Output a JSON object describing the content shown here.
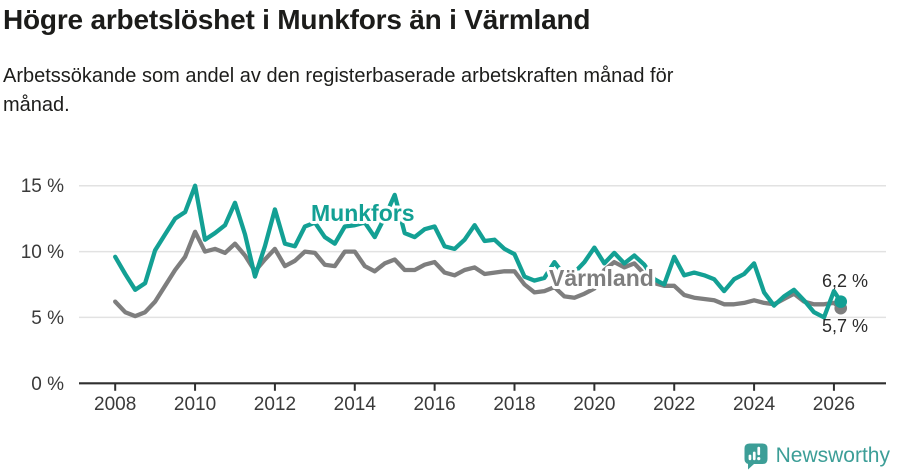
{
  "header": {
    "title": "Högre arbetslöshet i Munkfors än i Värmland",
    "subtitle_line1": "Arbetssökande som andel av den registerbaserade arbetskraften månad för",
    "subtitle_line2": "månad."
  },
  "footer": {
    "brand": "Newsworthy"
  },
  "chart_data": {
    "type": "line",
    "title": "Högre arbetslöshet i Munkfors än i Värmland",
    "subtitle": "Arbetssökande som andel av den registerbaserade arbetskraften månad för månad.",
    "x_unit": "decimal_year",
    "xlim": [
      2007.9,
      2026.3
    ],
    "ylim": [
      0,
      15.5
    ],
    "grid": "horizontal",
    "legend_position": "inline-labels",
    "colors": {
      "munkfors": "#13a094",
      "varmland": "#7e7e7e",
      "grid": "#e2e2e2",
      "axis": "#2f2f2f",
      "brand": "#3c9e97"
    },
    "y_ticks": [
      {
        "value": 0,
        "label": "0 %"
      },
      {
        "value": 5,
        "label": "5 %"
      },
      {
        "value": 10,
        "label": "10 %"
      },
      {
        "value": 15,
        "label": "15 %"
      }
    ],
    "x_ticks": [
      {
        "value": 2008,
        "label": "2008"
      },
      {
        "value": 2010,
        "label": "2010"
      },
      {
        "value": 2012,
        "label": "2012"
      },
      {
        "value": 2014,
        "label": "2014"
      },
      {
        "value": 2016,
        "label": "2016"
      },
      {
        "value": 2018,
        "label": "2018"
      },
      {
        "value": 2020,
        "label": "2020"
      },
      {
        "value": 2022,
        "label": "2022"
      },
      {
        "value": 2024,
        "label": "2024"
      },
      {
        "value": 2026,
        "label": "2026"
      }
    ],
    "x": [
      2008,
      2008.25,
      2008.5,
      2008.75,
      2009,
      2009.25,
      2009.5,
      2009.75,
      2010,
      2010.25,
      2010.5,
      2010.75,
      2011,
      2011.25,
      2011.5,
      2011.75,
      2012,
      2012.25,
      2012.5,
      2012.75,
      2013,
      2013.25,
      2013.5,
      2013.75,
      2014,
      2014.25,
      2014.5,
      2014.75,
      2015,
      2015.25,
      2015.5,
      2015.75,
      2016,
      2016.25,
      2016.5,
      2016.75,
      2017,
      2017.25,
      2017.5,
      2017.75,
      2018,
      2018.25,
      2018.5,
      2018.75,
      2019,
      2019.25,
      2019.5,
      2019.75,
      2020,
      2020.25,
      2020.5,
      2020.75,
      2021,
      2021.25,
      2021.5,
      2021.75,
      2022,
      2022.25,
      2022.5,
      2022.75,
      2023,
      2023.25,
      2023.5,
      2023.75,
      2024,
      2024.25,
      2024.5,
      2024.75,
      2025,
      2025.25,
      2025.5,
      2025.75,
      2026,
      2026.17
    ],
    "series": [
      {
        "name": "Munkfors",
        "color": "#13a094",
        "end_label": "6,2 %",
        "values": [
          9.6,
          8.3,
          7.1,
          7.6,
          10.1,
          11.3,
          12.5,
          13.0,
          15.0,
          10.9,
          11.4,
          12.0,
          13.7,
          11.3,
          8.1,
          10.4,
          13.2,
          10.6,
          10.4,
          11.9,
          12.2,
          11.1,
          10.6,
          11.9,
          12.0,
          12.2,
          11.1,
          12.6,
          14.3,
          11.4,
          11.1,
          11.7,
          11.9,
          10.4,
          10.2,
          10.9,
          12.0,
          10.8,
          10.9,
          10.2,
          9.8,
          8.1,
          7.8,
          8.0,
          9.2,
          8.2,
          8.4,
          9.2,
          10.3,
          9.1,
          9.9,
          9.1,
          9.7,
          9.0,
          7.9,
          7.5,
          9.6,
          8.2,
          8.4,
          8.2,
          7.9,
          7.0,
          7.9,
          8.3,
          9.1,
          6.9,
          5.9,
          6.6,
          7.1,
          6.3,
          5.4,
          5.0,
          7.0,
          6.2
        ]
      },
      {
        "name": "Värmland",
        "color": "#7e7e7e",
        "end_label": "5,7 %",
        "values": [
          6.2,
          5.4,
          5.1,
          5.4,
          6.2,
          7.4,
          8.6,
          9.6,
          11.5,
          10.0,
          10.2,
          9.9,
          10.6,
          9.7,
          8.5,
          9.4,
          10.2,
          8.9,
          9.3,
          10.0,
          9.9,
          9.0,
          8.9,
          10.0,
          10.0,
          8.9,
          8.5,
          9.1,
          9.4,
          8.6,
          8.6,
          9.0,
          9.2,
          8.4,
          8.2,
          8.6,
          8.8,
          8.3,
          8.4,
          8.5,
          8.5,
          7.5,
          6.9,
          7.0,
          7.3,
          6.6,
          6.5,
          6.8,
          7.2,
          8.6,
          9.2,
          8.8,
          9.1,
          8.3,
          7.6,
          7.4,
          7.4,
          6.7,
          6.5,
          6.4,
          6.3,
          6.0,
          6.0,
          6.1,
          6.3,
          6.1,
          6.0,
          6.4,
          6.8,
          6.2,
          6.0,
          6.0,
          6.1,
          5.7
        ]
      }
    ]
  }
}
